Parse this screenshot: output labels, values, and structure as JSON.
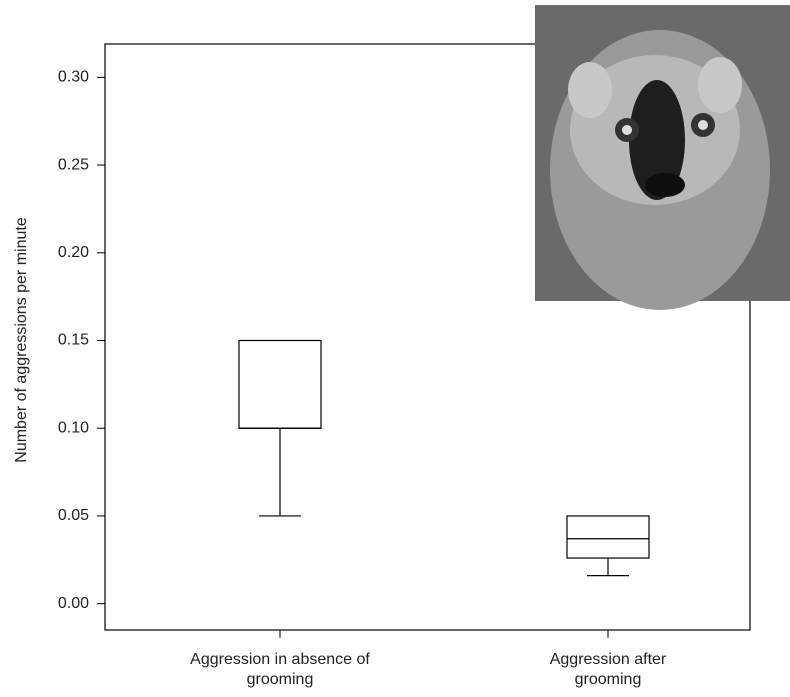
{
  "chart_data": {
    "type": "box",
    "ylabel": "Number of aggressions per minute",
    "categories": [
      "Aggression in absence of grooming",
      "Aggression after grooming"
    ],
    "boxes": [
      {
        "whislo": 0.05,
        "q1": 0.1,
        "med": 0.1,
        "q3": 0.15,
        "whishi": 0.15
      },
      {
        "whislo": 0.016,
        "q1": 0.026,
        "med": 0.037,
        "q3": 0.05,
        "whishi": 0.05
      }
    ],
    "color": "#000000",
    "ylim": [
      -0.015,
      0.319
    ],
    "yticks": [
      {
        "value": 0,
        "label": "0.00"
      },
      {
        "value": 0.05,
        "label": "0.05"
      },
      {
        "value": 0.1,
        "label": "0.10"
      },
      {
        "value": 0.15,
        "label": "0.15"
      },
      {
        "value": 0.2,
        "label": "0.20"
      },
      {
        "value": 0.25,
        "label": "0.25"
      },
      {
        "value": 0.3,
        "label": "0.30"
      }
    ]
  }
}
